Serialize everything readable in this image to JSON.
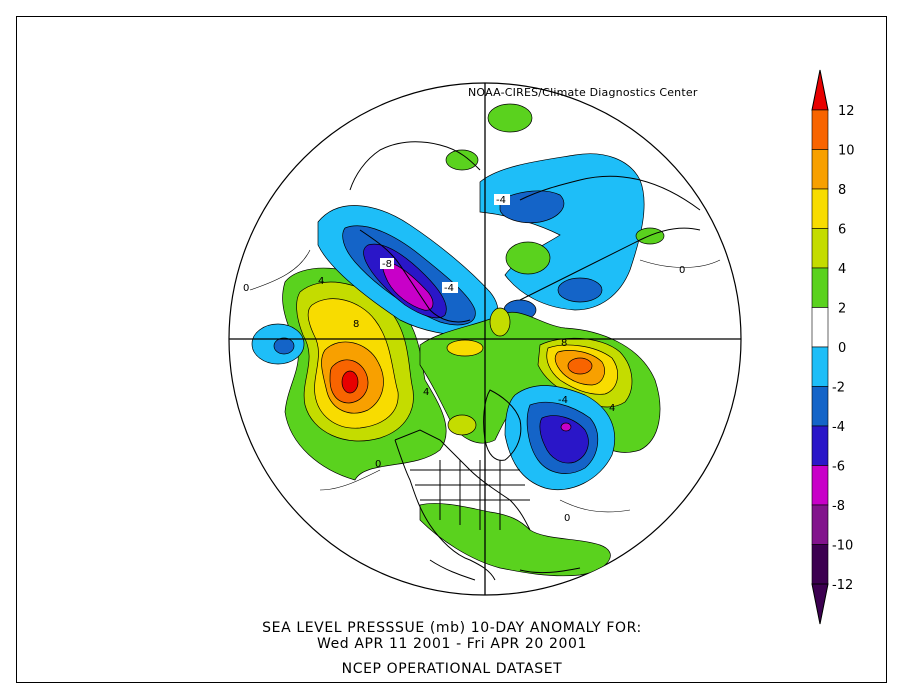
{
  "credit": "NOAA-CIRES/Climate Diagnostics Center",
  "caption": {
    "line1": "SEA LEVEL PRESSSUE (mb)   10-DAY ANOMALY FOR:",
    "line2": "Wed APR 11 2001 - Fri APR 20 2001",
    "line3": "NCEP OPERATIONAL DATASET"
  },
  "colorbar": {
    "ticks": [
      "12",
      "10",
      "8",
      "6",
      "4",
      "2",
      "0",
      "-2",
      "-4",
      "-6",
      "-8",
      "-10",
      "-12"
    ],
    "colors": [
      "#e80000",
      "#f86400",
      "#f8a000",
      "#f8dc00",
      "#c4dc00",
      "#5ad21e",
      "#ffffff",
      "#1ebef8",
      "#1464c8",
      "#2a16c8",
      "#c800c8",
      "#82148c",
      "#3c0050"
    ]
  },
  "contour_labels": [
    {
      "text": "4"
    },
    {
      "text": "8"
    },
    {
      "text": "-8"
    },
    {
      "text": "-4"
    },
    {
      "text": "-4"
    },
    {
      "text": "8"
    },
    {
      "text": "4"
    },
    {
      "text": "-4"
    },
    {
      "text": "4"
    },
    {
      "text": "0"
    },
    {
      "text": "0"
    },
    {
      "text": "0"
    },
    {
      "text": "0"
    }
  ]
}
